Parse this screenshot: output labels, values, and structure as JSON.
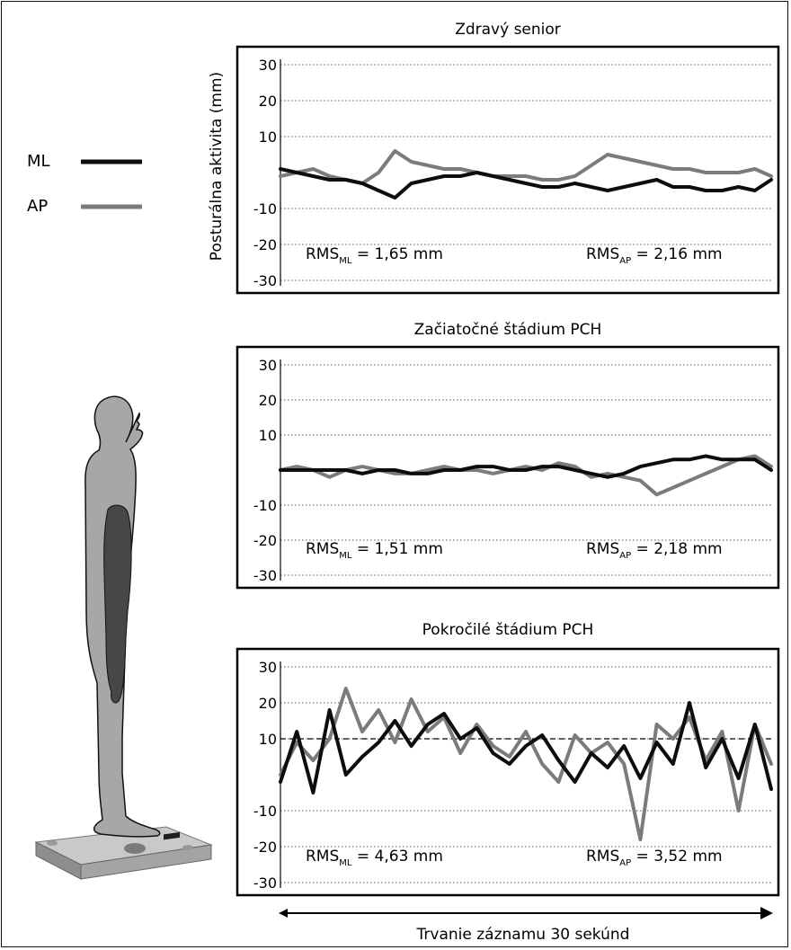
{
  "y_axis_label": "Posturálna aktivita (mm)",
  "x_axis_label": "Trvanie záznamu 30 sekúnd",
  "legend": [
    {
      "label": "ML",
      "color": "#0d0d0d"
    },
    {
      "label": "AP",
      "color": "#7b7b7b"
    }
  ],
  "colors": {
    "ml": "#0d0d0d",
    "ap": "#7b7b7b",
    "body_fill": "#a7a7a7",
    "muscle_fill": "#474747",
    "grid": "#555555"
  },
  "icons": [
    "standing-human-figure-icon",
    "force-platform-icon"
  ],
  "chart_data": [
    {
      "type": "line",
      "title": "Zdravý senior",
      "ylim": [
        -30,
        30
      ],
      "yticks": [
        30,
        20,
        10,
        -10,
        -20,
        -30
      ],
      "dashed_reference_y": null,
      "grid": "dotted",
      "x": [
        0,
        1,
        2,
        3,
        4,
        5,
        6,
        7,
        8,
        9,
        10,
        11,
        12,
        13,
        14,
        15,
        16,
        17,
        18,
        19,
        20,
        21,
        22,
        23,
        24,
        25,
        26,
        27,
        28,
        29,
        30
      ],
      "series": [
        {
          "name": "ML",
          "values": [
            1,
            0,
            -1,
            -2,
            -2,
            -3,
            -5,
            -7,
            -3,
            -2,
            -1,
            -1,
            0,
            -1,
            -2,
            -3,
            -4,
            -4,
            -3,
            -4,
            -5,
            -4,
            -3,
            -2,
            -4,
            -4,
            -5,
            -5,
            -4,
            -5,
            -2
          ]
        },
        {
          "name": "AP",
          "values": [
            -1,
            0,
            1,
            -1,
            -2,
            -3,
            0,
            6,
            3,
            2,
            1,
            1,
            0,
            -1,
            -1,
            -1,
            -2,
            -2,
            -1,
            2,
            5,
            4,
            3,
            2,
            1,
            1,
            0,
            0,
            0,
            1,
            -1
          ]
        },
        {
          "name": "RMS_ML",
          "label": "RMS",
          "sub": "ML",
          "text": "= 1,65 mm"
        },
        {
          "name": "RMS_AP",
          "label": "RMS",
          "sub": "AP",
          "text": "= 2,16 mm"
        }
      ]
    },
    {
      "type": "line",
      "title": "Začiatočné štádium PCH",
      "ylim": [
        -30,
        30
      ],
      "yticks": [
        30,
        20,
        10,
        -10,
        -20,
        -30
      ],
      "dashed_reference_y": null,
      "grid": "dotted",
      "x": [
        0,
        1,
        2,
        3,
        4,
        5,
        6,
        7,
        8,
        9,
        10,
        11,
        12,
        13,
        14,
        15,
        16,
        17,
        18,
        19,
        20,
        21,
        22,
        23,
        24,
        25,
        26,
        27,
        28,
        29,
        30
      ],
      "series": [
        {
          "name": "ML",
          "values": [
            0,
            0,
            0,
            0,
            0,
            -1,
            0,
            0,
            -1,
            -1,
            0,
            0,
            1,
            1,
            0,
            0,
            1,
            1,
            0,
            -1,
            -2,
            -1,
            1,
            2,
            3,
            3,
            4,
            3,
            3,
            3,
            0
          ]
        },
        {
          "name": "AP",
          "values": [
            0,
            1,
            0,
            -2,
            0,
            1,
            0,
            -1,
            -1,
            0,
            1,
            0,
            0,
            -1,
            0,
            1,
            0,
            2,
            1,
            -2,
            -1,
            -2,
            -3,
            -7,
            -5,
            -3,
            -1,
            1,
            3,
            4,
            1
          ]
        },
        {
          "name": "RMS_ML",
          "label": "RMS",
          "sub": "ML",
          "text": "= 1,51 mm"
        },
        {
          "name": "RMS_AP",
          "label": "RMS",
          "sub": "AP",
          "text": "= 2,18 mm"
        }
      ]
    },
    {
      "type": "line",
      "title": "Pokročilé štádium PCH",
      "ylim": [
        -30,
        30
      ],
      "yticks": [
        30,
        20,
        10,
        -10,
        -20,
        -30
      ],
      "dashed_reference_y": 10,
      "grid": "dotted",
      "x": [
        0,
        1,
        2,
        3,
        4,
        5,
        6,
        7,
        8,
        9,
        10,
        11,
        12,
        13,
        14,
        15,
        16,
        17,
        18,
        19,
        20,
        21,
        22,
        23,
        24,
        25,
        26,
        27,
        28,
        29,
        30
      ],
      "series": [
        {
          "name": "ML",
          "values": [
            -2,
            12,
            -5,
            18,
            0,
            5,
            9,
            15,
            8,
            14,
            17,
            10,
            13,
            6,
            3,
            8,
            11,
            4,
            -2,
            6,
            2,
            8,
            -1,
            9,
            3,
            20,
            2,
            10,
            -1,
            14,
            -4
          ]
        },
        {
          "name": "AP",
          "values": [
            0,
            9,
            4,
            10,
            24,
            12,
            18,
            9,
            21,
            12,
            16,
            6,
            14,
            8,
            5,
            12,
            3,
            -2,
            11,
            6,
            9,
            3,
            -18,
            14,
            10,
            16,
            4,
            12,
            -10,
            14,
            3
          ]
        },
        {
          "name": "RMS_ML",
          "label": "RMS",
          "sub": "ML",
          "text": "= 4,63 mm"
        },
        {
          "name": "RMS_AP",
          "label": "RMS",
          "sub": "AP",
          "text": "= 3,52 mm"
        }
      ]
    }
  ]
}
